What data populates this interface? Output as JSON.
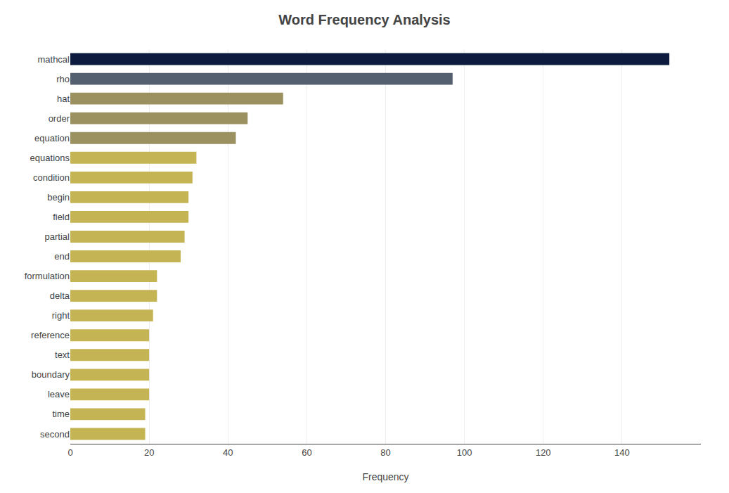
{
  "chart_data": {
    "type": "bar",
    "orientation": "horizontal",
    "title": "Word Frequency Analysis",
    "x_label": "Frequency",
    "categories": [
      "mathcal",
      "rho",
      "hat",
      "order",
      "equation",
      "equations",
      "condition",
      "begin",
      "field",
      "partial",
      "end",
      "formulation",
      "delta",
      "right",
      "reference",
      "text",
      "boundary",
      "leave",
      "time",
      "second"
    ],
    "values": [
      152,
      97,
      54,
      45,
      42,
      32,
      31,
      30,
      30,
      29,
      28,
      22,
      22,
      21,
      20,
      20,
      20,
      20,
      19,
      19
    ],
    "colors": [
      "#0d1b3e",
      "#546070",
      "#9b9060",
      "#9b9060",
      "#9b9060",
      "#c5b454",
      "#c5b454",
      "#c5b454",
      "#c5b454",
      "#c5b454",
      "#c5b454",
      "#c5b454",
      "#c5b454",
      "#c5b454",
      "#c5b454",
      "#c5b454",
      "#c5b454",
      "#c5b454",
      "#c5b454",
      "#c5b454"
    ],
    "xlim": [
      0,
      160
    ],
    "xticks": [
      0,
      20,
      40,
      60,
      80,
      100,
      120,
      140
    ],
    "grid": true
  }
}
